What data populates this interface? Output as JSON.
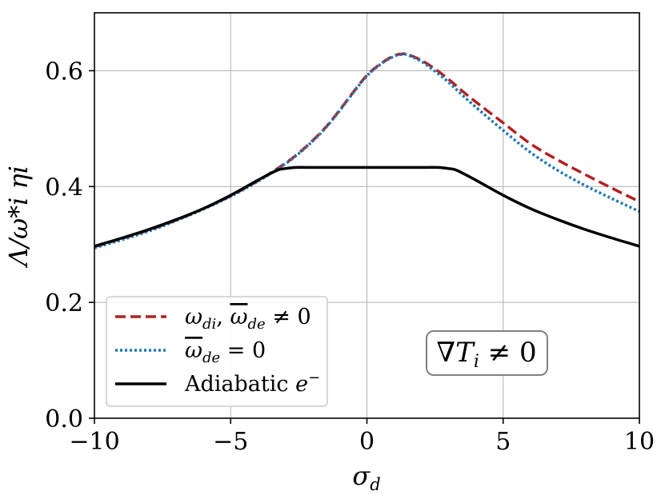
{
  "chart_data": {
    "type": "line",
    "xlabel": "σ_d",
    "ylabel": "Λ/ω*i ηi",
    "xlim": [
      -10,
      10
    ],
    "ylim": [
      0.0,
      0.7
    ],
    "xticks": [
      -10,
      -5,
      0,
      5,
      10
    ],
    "xtick_labels": [
      "−10",
      "−5",
      "0",
      "5",
      "10"
    ],
    "yticks": [
      0.0,
      0.2,
      0.4,
      0.6
    ],
    "ytick_labels": [
      "0.0",
      "0.2",
      "0.4",
      "0.6"
    ],
    "grid": true,
    "legend_position": "lower-left",
    "annotation": "∇T_i ≠ 0",
    "series": [
      {
        "name": "ω_di, ω̄_de ≠ 0",
        "label_text": "ω",
        "color": "#b22222",
        "style": "dashed",
        "x": [
          -10,
          -9,
          -8,
          -7,
          -6,
          -5,
          -4,
          -3,
          -2.5,
          -2,
          -1.5,
          -1,
          -0.5,
          0,
          0.5,
          1,
          1.3,
          1.5,
          2,
          2.5,
          3,
          3.5,
          4,
          5,
          6,
          7,
          8,
          9,
          10
        ],
        "y": [
          0.296,
          0.31,
          0.325,
          0.342,
          0.362,
          0.384,
          0.41,
          0.44,
          0.458,
          0.479,
          0.503,
          0.532,
          0.563,
          0.592,
          0.612,
          0.626,
          0.629,
          0.628,
          0.618,
          0.603,
          0.585,
          0.565,
          0.546,
          0.51,
          0.474,
          0.446,
          0.421,
          0.397,
          0.374
        ]
      },
      {
        "name": "ω̄_de = 0",
        "label_text": "ω",
        "color": "#1f77b4",
        "style": "dotted",
        "x": [
          -10,
          -9,
          -8,
          -7,
          -6,
          -5,
          -4,
          -3,
          -2.5,
          -2,
          -1.5,
          -1,
          -0.5,
          0,
          0.5,
          1,
          1.3,
          1.5,
          2,
          2.5,
          3,
          3.5,
          4,
          5,
          6,
          7,
          8,
          9,
          10
        ],
        "y": [
          0.294,
          0.308,
          0.323,
          0.341,
          0.361,
          0.383,
          0.409,
          0.439,
          0.457,
          0.478,
          0.502,
          0.531,
          0.562,
          0.591,
          0.611,
          0.625,
          0.628,
          0.627,
          0.616,
          0.599,
          0.58,
          0.558,
          0.537,
          0.497,
          0.459,
          0.428,
          0.402,
          0.379,
          0.357
        ]
      },
      {
        "name": "Adiabatic e⁻",
        "label_text": "Adiabatic",
        "color": "#000000",
        "style": "solid",
        "x": [
          -10,
          -9,
          -8,
          -7,
          -6,
          -5,
          -4,
          -3.3,
          -3,
          -2.6,
          -2,
          -1,
          0,
          1,
          2,
          2.6,
          3,
          3.3,
          4,
          5,
          6,
          7,
          8,
          9,
          10
        ],
        "y": [
          0.297,
          0.311,
          0.326,
          0.343,
          0.362,
          0.385,
          0.411,
          0.428,
          0.431,
          0.433,
          0.433,
          0.433,
          0.433,
          0.433,
          0.433,
          0.433,
          0.431,
          0.428,
          0.411,
          0.385,
          0.362,
          0.343,
          0.326,
          0.311,
          0.297
        ]
      }
    ]
  }
}
